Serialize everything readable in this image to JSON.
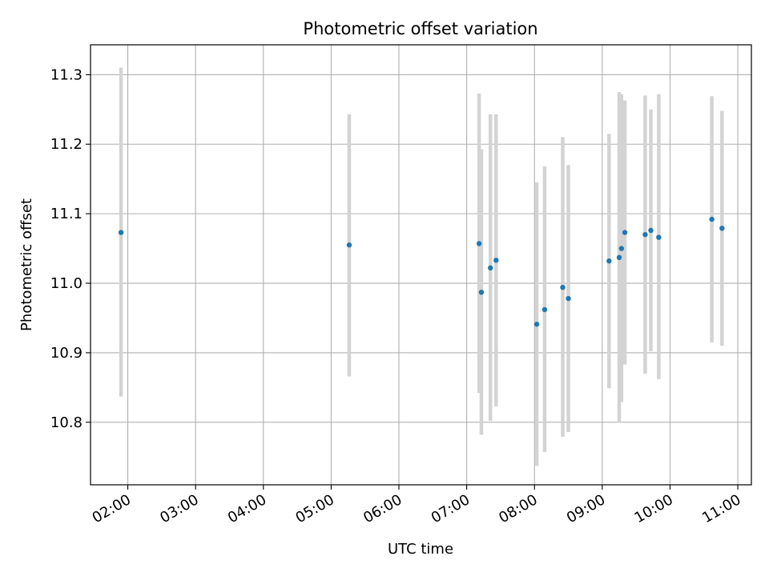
{
  "chart_data": {
    "type": "scatter",
    "title": "Photometric offset variation",
    "xlabel": "UTC time",
    "ylabel": "Photometric offset",
    "x_tick_labels": [
      "02:00",
      "03:00",
      "04:00",
      "05:00",
      "06:00",
      "07:00",
      "08:00",
      "09:00",
      "10:00",
      "11:00"
    ],
    "x_tick_hours": [
      2,
      3,
      4,
      5,
      6,
      7,
      8,
      9,
      10,
      11
    ],
    "y_ticks": [
      10.8,
      10.9,
      11.0,
      11.1,
      11.2,
      11.3
    ],
    "y_tick_labels": [
      "10.8",
      "10.9",
      "11.0",
      "11.1",
      "11.2",
      "11.3"
    ],
    "xlim_hours": [
      1.45,
      11.2
    ],
    "ylim": [
      10.71,
      11.343
    ],
    "grid": true,
    "marker_color": "#1f77b4",
    "errorbar_color": "#d3d3d3",
    "points": [
      {
        "t": "01:54",
        "y": 11.073,
        "lo": 10.837,
        "hi": 11.31
      },
      {
        "t": "05:16",
        "y": 11.055,
        "lo": 10.866,
        "hi": 11.243
      },
      {
        "t": "07:11",
        "y": 11.057,
        "lo": 10.842,
        "hi": 11.273
      },
      {
        "t": "07:13",
        "y": 10.987,
        "lo": 10.782,
        "hi": 11.193
      },
      {
        "t": "07:21",
        "y": 11.022,
        "lo": 10.802,
        "hi": 11.243
      },
      {
        "t": "07:26",
        "y": 11.033,
        "lo": 10.823,
        "hi": 11.243
      },
      {
        "t": "08:02",
        "y": 10.941,
        "lo": 10.737,
        "hi": 11.145
      },
      {
        "t": "08:09",
        "y": 10.962,
        "lo": 10.757,
        "hi": 11.168
      },
      {
        "t": "08:25",
        "y": 10.994,
        "lo": 10.779,
        "hi": 11.21
      },
      {
        "t": "08:30",
        "y": 10.978,
        "lo": 10.786,
        "hi": 11.17
      },
      {
        "t": "09:06",
        "y": 11.032,
        "lo": 10.849,
        "hi": 11.215
      },
      {
        "t": "09:15",
        "y": 11.037,
        "lo": 10.799,
        "hi": 11.275
      },
      {
        "t": "09:17",
        "y": 11.05,
        "lo": 10.829,
        "hi": 11.272
      },
      {
        "t": "09:20",
        "y": 11.073,
        "lo": 10.883,
        "hi": 11.263
      },
      {
        "t": "09:38",
        "y": 11.07,
        "lo": 10.87,
        "hi": 11.27
      },
      {
        "t": "09:43",
        "y": 11.076,
        "lo": 10.902,
        "hi": 11.25
      },
      {
        "t": "09:50",
        "y": 11.066,
        "lo": 10.862,
        "hi": 11.272
      },
      {
        "t": "10:37",
        "y": 11.092,
        "lo": 10.915,
        "hi": 11.269
      },
      {
        "t": "10:46",
        "y": 11.079,
        "lo": 10.91,
        "hi": 11.248
      }
    ]
  }
}
